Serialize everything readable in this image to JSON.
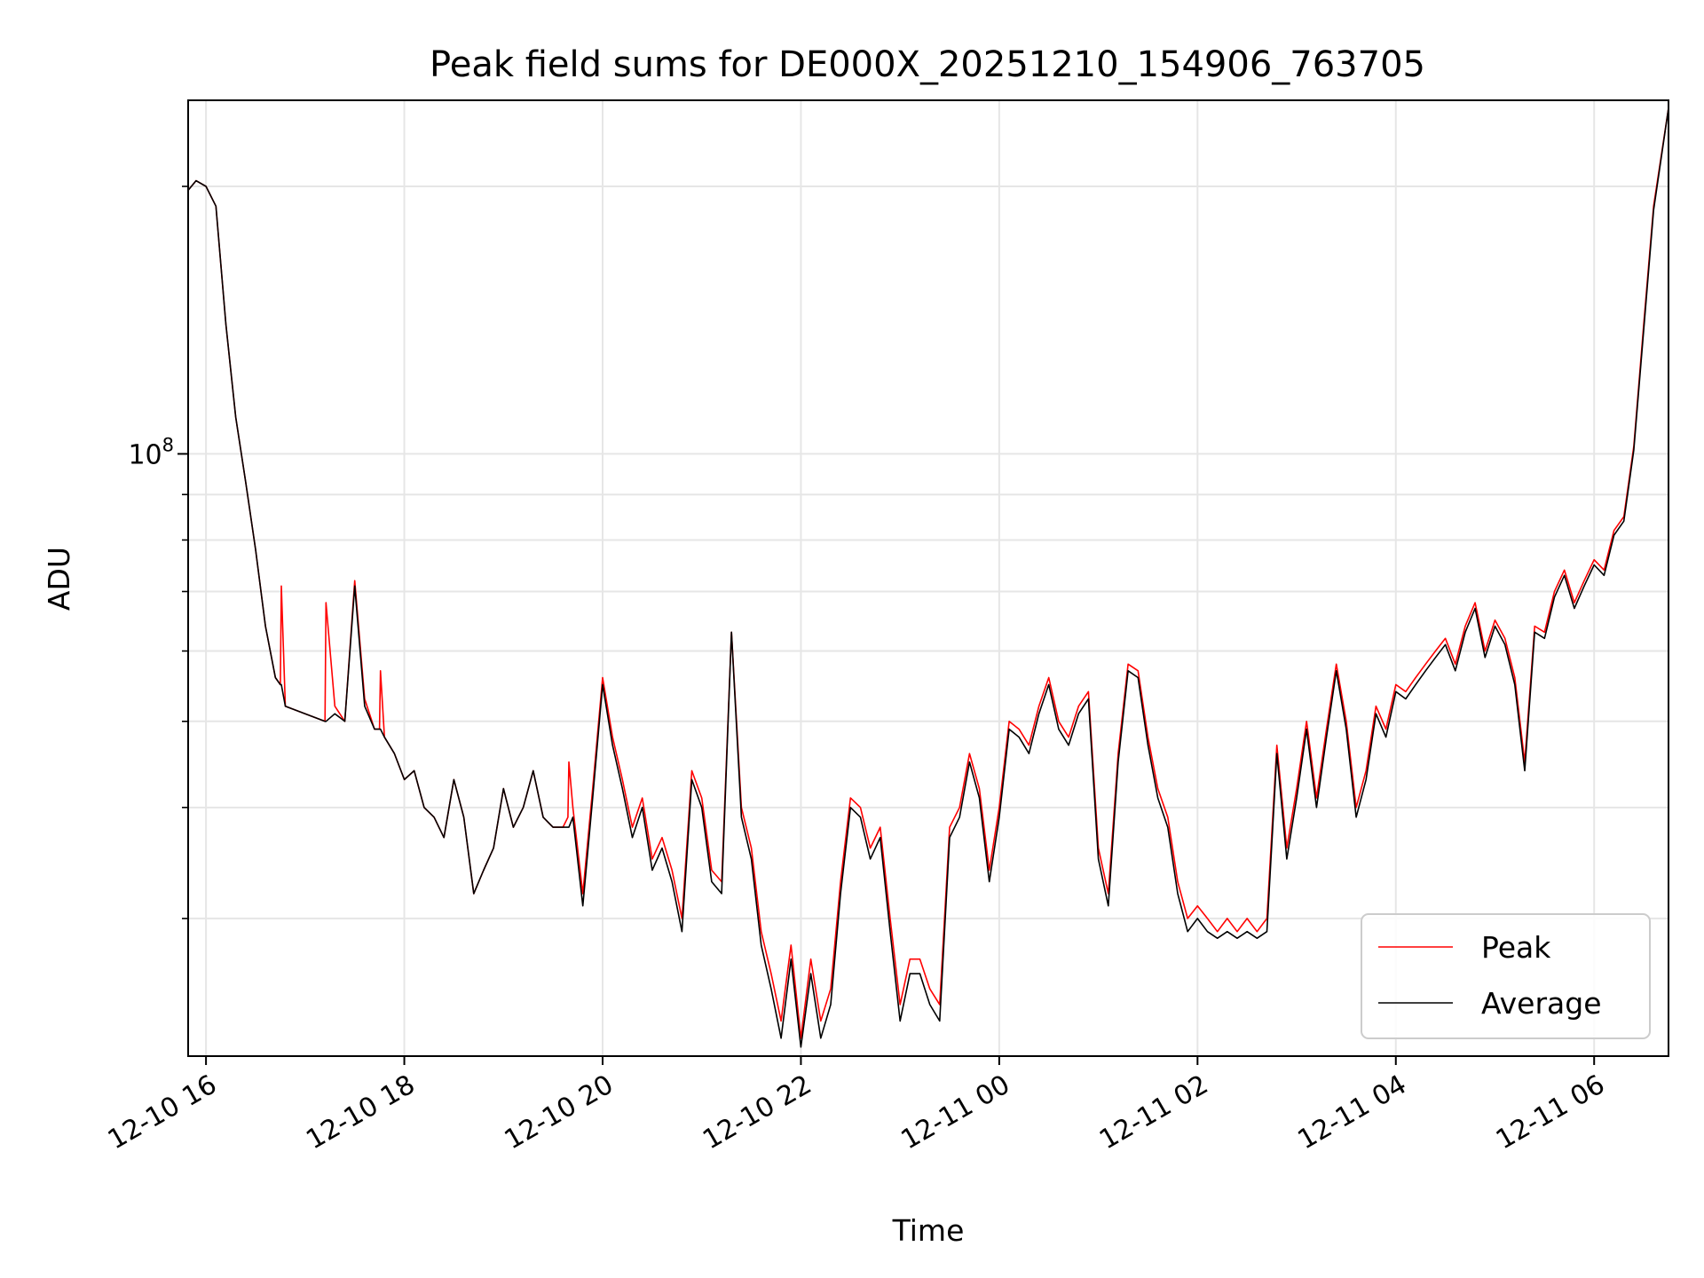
{
  "chart_data": {
    "type": "line",
    "title": "Peak field sums for DE000X_20251210_154906_763705",
    "xlabel": "Time",
    "ylabel": "ADU",
    "yscale": "log",
    "ylim": [
      21000000,
      250000000
    ],
    "xlim_hours": [
      15.82,
      30.75
    ],
    "grid": true,
    "legend_loc": "lower right",
    "x_ticks": [
      {
        "hour": 16,
        "label": "12-10 16"
      },
      {
        "hour": 18,
        "label": "12-10 18"
      },
      {
        "hour": 20,
        "label": "12-10 20"
      },
      {
        "hour": 22,
        "label": "12-10 22"
      },
      {
        "hour": 24,
        "label": "12-11 00"
      },
      {
        "hour": 26,
        "label": "12-11 02"
      },
      {
        "hour": 28,
        "label": "12-11 04"
      },
      {
        "hour": 30,
        "label": "12-11 06"
      }
    ],
    "y_major_ticks": [
      {
        "value": 100000000,
        "label_base": "10",
        "label_exp": "8"
      }
    ],
    "y_minor_ticks": [
      30000000,
      40000000,
      50000000,
      60000000,
      70000000,
      80000000,
      90000000,
      200000000
    ],
    "series": [
      {
        "name": "Peak",
        "color": "#ff0000",
        "x_hours": [
          15.82,
          15.9,
          16.0,
          16.1,
          16.2,
          16.3,
          16.4,
          16.5,
          16.6,
          16.7,
          16.75,
          16.76,
          16.8,
          17.0,
          17.2,
          17.21,
          17.3,
          17.4,
          17.5,
          17.6,
          17.7,
          17.75,
          17.76,
          17.8,
          17.9,
          18.0,
          18.1,
          18.2,
          18.3,
          18.4,
          18.5,
          18.6,
          18.7,
          18.8,
          18.9,
          19.0,
          19.1,
          19.2,
          19.3,
          19.4,
          19.5,
          19.6,
          19.65,
          19.66,
          19.7,
          19.8,
          19.9,
          20.0,
          20.1,
          20.2,
          20.3,
          20.4,
          20.5,
          20.6,
          20.7,
          20.8,
          20.9,
          21.0,
          21.1,
          21.2,
          21.3,
          21.4,
          21.5,
          21.6,
          21.7,
          21.8,
          21.9,
          22.0,
          22.1,
          22.2,
          22.3,
          22.4,
          22.5,
          22.6,
          22.7,
          22.8,
          22.9,
          23.0,
          23.1,
          23.2,
          23.3,
          23.4,
          23.5,
          23.6,
          23.7,
          23.8,
          23.9,
          24.0,
          24.1,
          24.2,
          24.3,
          24.4,
          24.5,
          24.6,
          24.7,
          24.8,
          24.9,
          25.0,
          25.1,
          25.2,
          25.3,
          25.4,
          25.5,
          25.6,
          25.7,
          25.8,
          25.9,
          26.0,
          26.1,
          26.2,
          26.3,
          26.4,
          26.5,
          26.6,
          26.7,
          26.8,
          26.9,
          27.0,
          27.1,
          27.2,
          27.3,
          27.4,
          27.5,
          27.6,
          27.7,
          27.8,
          27.9,
          28.0,
          28.1,
          28.2,
          28.3,
          28.4,
          28.5,
          28.6,
          28.7,
          28.8,
          28.9,
          29.0,
          29.1,
          29.2,
          29.3,
          29.4,
          29.5,
          29.6,
          29.7,
          29.8,
          29.9,
          30.0,
          30.1,
          30.2,
          30.3,
          30.4,
          30.5,
          30.6,
          30.75
        ],
        "values": [
          198000000,
          203000000,
          200000000,
          190000000,
          140000000,
          110000000,
          93000000,
          78000000,
          64000000,
          56000000,
          55000000,
          71000000,
          52000000,
          51000000,
          50000000,
          68000000,
          52000000,
          50000000,
          72000000,
          53000000,
          49000000,
          49000000,
          57000000,
          48000000,
          46000000,
          43000000,
          44000000,
          40000000,
          39000000,
          37000000,
          43000000,
          39000000,
          32000000,
          34000000,
          36000000,
          42000000,
          38000000,
          40000000,
          44000000,
          39000000,
          38000000,
          38000000,
          39000000,
          45000000,
          40000000,
          32000000,
          42000000,
          56000000,
          48000000,
          43000000,
          38000000,
          41000000,
          35000000,
          37000000,
          34000000,
          30000000,
          44000000,
          41000000,
          34000000,
          33000000,
          63000000,
          40000000,
          36000000,
          29000000,
          26000000,
          23000000,
          28000000,
          22000000,
          27000000,
          23000000,
          25000000,
          33000000,
          41000000,
          40000000,
          36000000,
          38000000,
          30000000,
          24000000,
          27000000,
          27000000,
          25000000,
          24000000,
          38000000,
          40000000,
          46000000,
          42000000,
          34000000,
          40000000,
          50000000,
          49000000,
          47000000,
          52000000,
          56000000,
          50000000,
          48000000,
          52000000,
          54000000,
          36000000,
          32000000,
          46000000,
          58000000,
          57000000,
          48000000,
          42000000,
          39000000,
          33000000,
          30000000,
          31000000,
          30000000,
          29000000,
          30000000,
          29000000,
          30000000,
          29000000,
          30000000,
          47000000,
          36000000,
          42000000,
          50000000,
          41000000,
          49000000,
          58000000,
          50000000,
          40000000,
          44000000,
          52000000,
          49000000,
          55000000,
          54000000,
          56000000,
          58000000,
          60000000,
          62000000,
          58000000,
          64000000,
          68000000,
          60000000,
          65000000,
          62000000,
          56000000,
          45000000,
          64000000,
          63000000,
          70000000,
          74000000,
          68000000,
          72000000,
          76000000,
          74000000,
          82000000,
          85000000,
          102000000,
          140000000,
          190000000,
          245000000
        ]
      },
      {
        "name": "Average",
        "color": "#000000",
        "x_hours": [
          15.82,
          15.9,
          16.0,
          16.1,
          16.2,
          16.3,
          16.4,
          16.5,
          16.6,
          16.7,
          16.75,
          16.76,
          16.8,
          17.0,
          17.2,
          17.21,
          17.3,
          17.4,
          17.5,
          17.6,
          17.7,
          17.75,
          17.76,
          17.8,
          17.9,
          18.0,
          18.1,
          18.2,
          18.3,
          18.4,
          18.5,
          18.6,
          18.7,
          18.8,
          18.9,
          19.0,
          19.1,
          19.2,
          19.3,
          19.4,
          19.5,
          19.6,
          19.65,
          19.66,
          19.7,
          19.8,
          19.9,
          20.0,
          20.1,
          20.2,
          20.3,
          20.4,
          20.5,
          20.6,
          20.7,
          20.8,
          20.9,
          21.0,
          21.1,
          21.2,
          21.3,
          21.4,
          21.5,
          21.6,
          21.7,
          21.8,
          21.9,
          22.0,
          22.1,
          22.2,
          22.3,
          22.4,
          22.5,
          22.6,
          22.7,
          22.8,
          22.9,
          23.0,
          23.1,
          23.2,
          23.3,
          23.4,
          23.5,
          23.6,
          23.7,
          23.8,
          23.9,
          24.0,
          24.1,
          24.2,
          24.3,
          24.4,
          24.5,
          24.6,
          24.7,
          24.8,
          24.9,
          25.0,
          25.1,
          25.2,
          25.3,
          25.4,
          25.5,
          25.6,
          25.7,
          25.8,
          25.9,
          26.0,
          26.1,
          26.2,
          26.3,
          26.4,
          26.5,
          26.6,
          26.7,
          26.8,
          26.9,
          27.0,
          27.1,
          27.2,
          27.3,
          27.4,
          27.5,
          27.6,
          27.7,
          27.8,
          27.9,
          28.0,
          28.1,
          28.2,
          28.3,
          28.4,
          28.5,
          28.6,
          28.7,
          28.8,
          28.9,
          29.0,
          29.1,
          29.2,
          29.3,
          29.4,
          29.5,
          29.6,
          29.7,
          29.8,
          29.9,
          30.0,
          30.1,
          30.2,
          30.3,
          30.4,
          30.5,
          30.6,
          30.75
        ],
        "values": [
          198000000,
          203000000,
          200000000,
          190000000,
          140000000,
          110000000,
          93000000,
          78000000,
          64000000,
          56000000,
          55000000,
          55000000,
          52000000,
          51000000,
          50000000,
          50000000,
          51000000,
          50000000,
          71000000,
          52000000,
          49000000,
          49000000,
          49000000,
          48000000,
          46000000,
          43000000,
          44000000,
          40000000,
          39000000,
          37000000,
          43000000,
          39000000,
          32000000,
          34000000,
          36000000,
          42000000,
          38000000,
          40000000,
          44000000,
          39000000,
          38000000,
          38000000,
          38000000,
          38000000,
          39000000,
          31000000,
          41000000,
          55000000,
          47000000,
          42000000,
          37000000,
          40000000,
          34000000,
          36000000,
          33000000,
          29000000,
          43000000,
          40000000,
          33000000,
          32000000,
          63000000,
          39000000,
          35000000,
          28000000,
          25000000,
          22000000,
          27000000,
          21500000,
          26000000,
          22000000,
          24000000,
          32000000,
          40000000,
          39000000,
          35000000,
          37000000,
          29000000,
          23000000,
          26000000,
          26000000,
          24000000,
          23000000,
          37000000,
          39000000,
          45000000,
          41000000,
          33000000,
          39000000,
          49000000,
          48000000,
          46000000,
          51000000,
          55000000,
          49000000,
          47000000,
          51000000,
          53000000,
          35000000,
          31000000,
          45000000,
          57000000,
          56000000,
          47000000,
          41000000,
          38000000,
          32000000,
          29000000,
          30000000,
          29000000,
          28500000,
          29000000,
          28500000,
          29000000,
          28500000,
          29000000,
          46000000,
          35000000,
          41000000,
          49000000,
          40000000,
          48000000,
          57000000,
          49000000,
          39000000,
          43000000,
          51000000,
          48000000,
          54000000,
          53000000,
          55000000,
          57000000,
          59000000,
          61000000,
          57000000,
          63000000,
          67000000,
          59000000,
          64000000,
          61000000,
          55000000,
          44000000,
          63000000,
          62000000,
          69000000,
          73000000,
          67000000,
          71000000,
          75000000,
          73000000,
          81000000,
          84000000,
          101000000,
          138000000,
          188000000,
          245000000
        ]
      }
    ]
  }
}
